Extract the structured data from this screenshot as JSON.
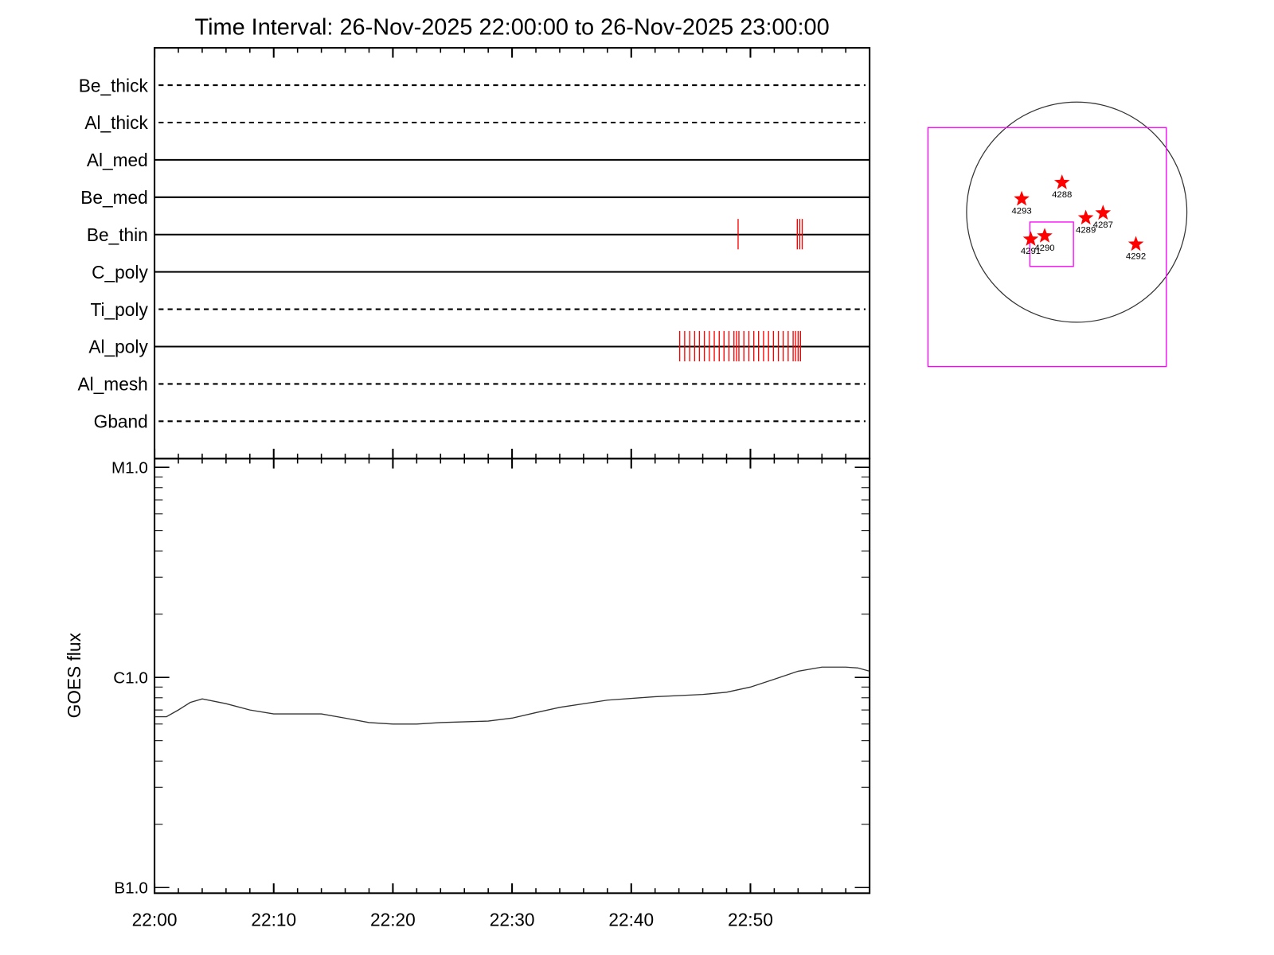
{
  "chart_data": [
    {
      "type": "timeline",
      "rows": [
        {
          "label": "Be_thick",
          "line": "dashed",
          "times": []
        },
        {
          "label": "Al_thick",
          "line": "dashed",
          "times": []
        },
        {
          "label": "Al_med",
          "line": "solid",
          "times": []
        },
        {
          "label": "Be_med",
          "line": "solid",
          "times": []
        },
        {
          "label": "Be_thin",
          "line": "solid",
          "times": [
            "22:48:58",
            "22:53:56",
            "22:54:08",
            "22:54:21"
          ]
        },
        {
          "label": "C_poly",
          "line": "solid",
          "times": []
        },
        {
          "label": "Ti_poly",
          "line": "dashed",
          "times": []
        },
        {
          "label": "Al_poly",
          "line": "solid",
          "times": [
            "22:44:04",
            "22:44:29",
            "22:44:54",
            "22:45:19",
            "22:45:43",
            "22:46:08",
            "22:46:33",
            "22:46:58",
            "22:47:23",
            "22:47:47",
            "22:48:12",
            "22:48:37",
            "22:48:50",
            "22:49:02",
            "22:49:27",
            "22:49:52",
            "22:50:17",
            "22:50:41",
            "22:51:06",
            "22:51:31",
            "22:51:56",
            "22:52:21",
            "22:52:45",
            "22:53:10",
            "22:53:35",
            "22:53:47",
            "22:54:00",
            "22:54:12"
          ]
        },
        {
          "label": "Al_mesh",
          "line": "dashed",
          "times": []
        },
        {
          "label": "Gband",
          "line": "dashed",
          "times": []
        }
      ],
      "event_color": "#ff0000"
    },
    {
      "type": "line",
      "title": "Time Interval: 26-Nov-2025 22:00:00 to 26-Nov-2025 23:00:00",
      "y_label": "GOES flux",
      "x": [
        "22:00",
        "22:01",
        "22:02",
        "22:03",
        "22:04",
        "22:06",
        "22:08",
        "22:10",
        "22:14",
        "22:16",
        "22:18",
        "22:20",
        "22:22",
        "22:24",
        "22:28",
        "22:30",
        "22:32",
        "22:34",
        "22:38",
        "22:42",
        "22:46",
        "22:48",
        "22:50",
        "22:52",
        "22:54",
        "22:56",
        "22:58",
        "22:59",
        "23:00"
      ],
      "values": [
        6.5e-07,
        6.5e-07,
        7e-07,
        7.6e-07,
        7.9e-07,
        7.5e-07,
        7e-07,
        6.7e-07,
        6.7e-07,
        6.4e-07,
        6.1e-07,
        6e-07,
        6e-07,
        6.1e-07,
        6.2e-07,
        6.4e-07,
        6.8e-07,
        7.2e-07,
        7.8e-07,
        8.1e-07,
        8.3e-07,
        8.5e-07,
        9e-07,
        9.8e-07,
        1.07e-06,
        1.12e-06,
        1.12e-06,
        1.11e-06,
        1.07e-06
      ],
      "color": "#333333",
      "xlim": [
        "22:00",
        "23:00"
      ],
      "xticks": [
        "22:00",
        "22:10",
        "22:20",
        "22:30",
        "22:40",
        "22:50"
      ],
      "ylim": [
        9.4e-08,
        1.1e-05
      ],
      "yticks": [
        {
          "value": 1e-07,
          "label": "B1.0"
        },
        {
          "value": 1e-06,
          "label": "C1.0"
        },
        {
          "value": 1e-05,
          "label": "M1.0"
        }
      ],
      "log_y": true
    },
    {
      "type": "map",
      "radius": 972,
      "star_color": "#ff0000",
      "box_color": "#ff00ff",
      "boxes": [
        {
          "center": [
            -261,
            -308
          ],
          "size": [
            2103,
            2110
          ]
        },
        {
          "center": [
            -221,
            -283
          ],
          "size": [
            384,
            392
          ]
        }
      ],
      "regions": [
        {
          "label": "4288",
          "x": -130,
          "y": 261
        },
        {
          "label": "4293",
          "x": -486,
          "y": 116
        },
        {
          "label": "4289",
          "x": 80,
          "y": -51
        },
        {
          "label": "4287",
          "x": 232,
          "y": -7
        },
        {
          "label": "4290",
          "x": -283,
          "y": -210
        },
        {
          "label": "4291",
          "x": -406,
          "y": -239
        },
        {
          "label": "4292",
          "x": 522,
          "y": -283
        }
      ]
    }
  ]
}
